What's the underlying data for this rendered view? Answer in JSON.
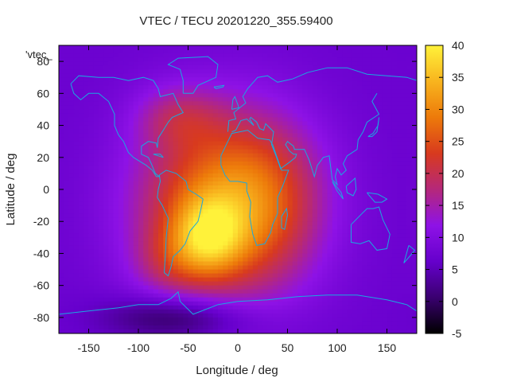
{
  "chart_data": {
    "type": "heatmap",
    "title": "VTEC / TECU 20201220_355.59400",
    "xlabel": "Longitude / deg",
    "ylabel": "Latitude / deg",
    "key_label": "'vtec_",
    "xlim": [
      -180,
      180
    ],
    "ylim": [
      -90,
      90
    ],
    "x_ticks": [
      -150,
      -100,
      -50,
      0,
      50,
      100,
      150
    ],
    "y_ticks": [
      -80,
      -60,
      -40,
      -20,
      0,
      20,
      40,
      60,
      80
    ],
    "colorbar": {
      "range": [
        -5,
        40
      ],
      "ticks": [
        -5,
        0,
        5,
        10,
        15,
        20,
        25,
        30,
        35,
        40
      ],
      "palette": [
        "#000000",
        "#3a0070",
        "#6600cc",
        "#8e12e6",
        "#b5287a",
        "#d83a1e",
        "#ed7a0a",
        "#f8b41e",
        "#fff23a"
      ]
    },
    "grid": false,
    "legend_position": "top-left",
    "features": [
      {
        "lon": -15,
        "lat": -10,
        "value": 22,
        "sx": 60,
        "sy": 40
      },
      {
        "lon": -30,
        "lat": -30,
        "value": 15,
        "sx": 25,
        "sy": 17
      },
      {
        "lon": -70,
        "lat": -45,
        "value": 5,
        "sx": 25,
        "sy": 15
      },
      {
        "lon": 30,
        "lat": -5,
        "value": 6,
        "sx": 40,
        "sy": 35
      },
      {
        "lon": -60,
        "lat": 45,
        "value": 7,
        "sx": 30,
        "sy": 14
      },
      {
        "lon": -60,
        "lat": -80,
        "value": -9,
        "sx": 50,
        "sy": 10
      }
    ],
    "background_value": 7
  }
}
